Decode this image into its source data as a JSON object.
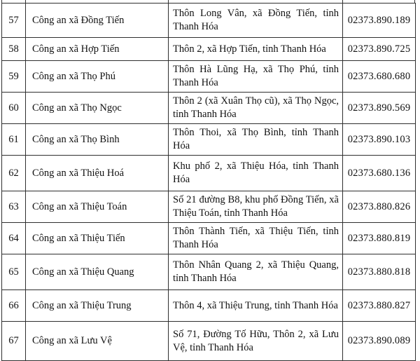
{
  "colors": {
    "background": "#ffffff",
    "text": "#111111",
    "border": "#2f2f2f"
  },
  "table": {
    "description": "Directory of commune police stations with addresses and phone numbers",
    "rows": [
      {
        "no": "57",
        "name": "Công an xã Đồng Tiến",
        "address": "Thôn Long Vân, xã Đồng Tiến, tỉnh Thanh Hóa",
        "phone": "02373.890.189"
      },
      {
        "no": "58",
        "name": "Công an xã Hợp Tiến",
        "address": "Thôn 2, xã Hợp Tiến, tỉnh Thanh Hóa",
        "phone": "02373.890.725"
      },
      {
        "no": "59",
        "name": "Công an xã Thọ Phú",
        "address": "Thôn Hà Lũng Hạ, xã Thọ Phú, tỉnh Thanh Hóa",
        "phone": "02373.680.680"
      },
      {
        "no": "60",
        "name": "Công an xã Thọ Ngọc",
        "address": "Thôn 2 (xã Xuân Thọ cũ), xã Thọ Ngọc, tỉnh Thanh Hóa",
        "phone": "02373.890.569"
      },
      {
        "no": "61",
        "name": "Công an xã Thọ Bình",
        "address": "Thôn Thoi, xã Thọ Bình, tỉnh Thanh Hóa",
        "phone": "02373.890.103"
      },
      {
        "no": "62",
        "name": "Công an xã Thiệu Hoá",
        "address": "Khu phố 2, xã Thiệu Hóa, tỉnh Thanh Hóa",
        "phone": "02373.680.136"
      },
      {
        "no": "63",
        "name": "Công an xã Thiệu Toán",
        "address": "Số 21 đường B8, khu phố Đồng Tiến, xã Thiệu Toán, tỉnh Thanh Hóa",
        "phone": "02373.880.826"
      },
      {
        "no": "64",
        "name": "Công an xã Thiệu Tiến",
        "address": "Thôn Thành Tiến, xã Thiệu Tiến, tỉnh Thanh Hóa",
        "phone": "02373.880.819"
      },
      {
        "no": "65",
        "name": "Công an xã Thiệu Quang",
        "address": "Thôn Nhân Quang 2, xã Thiệu Quang, tỉnh Thanh Hóa",
        "phone": "02373.880.818"
      },
      {
        "no": "66",
        "name": "Công an xã Thiệu Trung",
        "address": "Thôn 4, xã Thiệu Trung, tỉnh Thanh Hóa",
        "phone": "02373.880.827"
      },
      {
        "no": "67",
        "name": "Công an xã Lưu Vệ",
        "address": "Số 71, Đường Tố Hữu, Thôn 2, xã Lưu Vệ, tỉnh Thanh Hóa",
        "phone": "02373.890.089"
      }
    ]
  }
}
